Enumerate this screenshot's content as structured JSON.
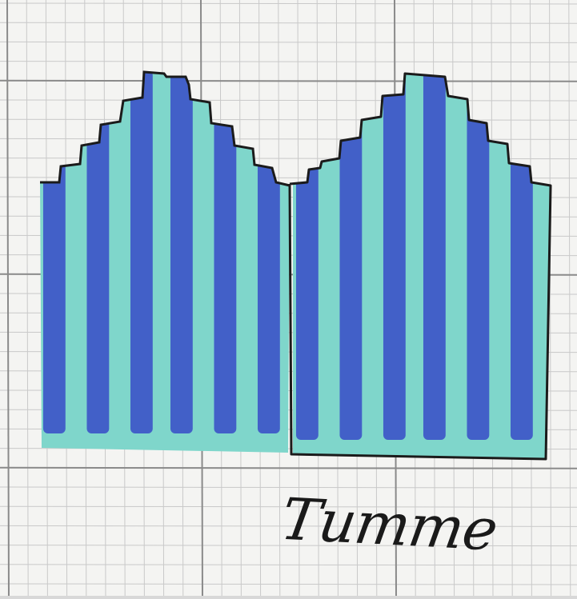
{
  "label": {
    "text": "Tumme"
  },
  "colors": {
    "paper": "#f4f4f2",
    "grid_fine": "#c9c9c9",
    "grid_major": "#8a8a8a",
    "stripe_blue": "#3d56c8",
    "stripe_teal": "#7fd6cb",
    "outline": "#1b1b1b",
    "ink": "#1a1a1a"
  },
  "pattern": {
    "stripe_sequence": [
      "teal",
      "blue"
    ],
    "pieces": 2
  }
}
